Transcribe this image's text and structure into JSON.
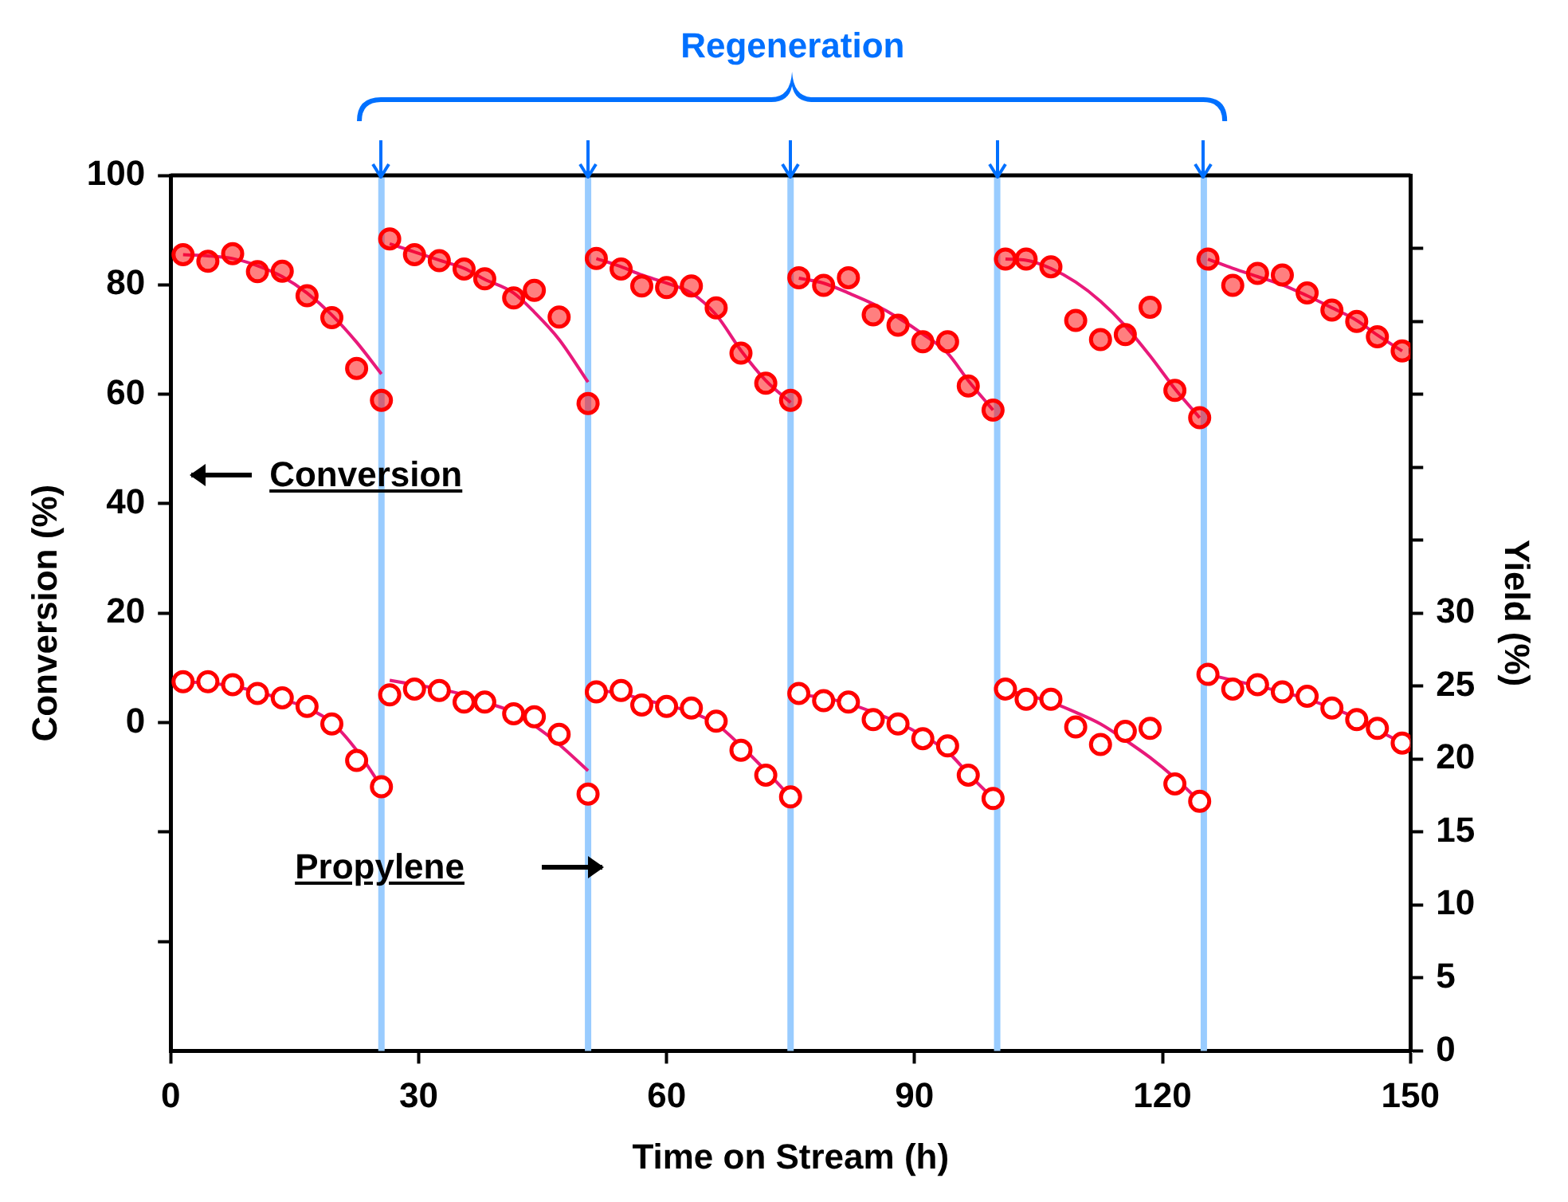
{
  "chart_data": {
    "type": "scatter",
    "xlabel": "Time on Stream (h)",
    "ylabel": "Conversion (%)",
    "y2label": "Yield (%)",
    "xlim": [
      0,
      150
    ],
    "xticks": [
      0,
      30,
      60,
      90,
      120,
      150
    ],
    "ylim": [
      -60,
      100
    ],
    "yticks": [
      {
        "value": -40,
        "label": null
      },
      {
        "value": -20,
        "label": null
      },
      0,
      20,
      40,
      60,
      80,
      100
    ],
    "y2lim": [
      0,
      60
    ],
    "y2ticks": [
      0,
      5,
      10,
      15,
      20,
      25,
      30,
      {
        "value": 35,
        "label": null
      },
      {
        "value": 40,
        "label": null
      },
      {
        "value": 45,
        "label": null
      },
      {
        "value": 50,
        "label": null
      },
      {
        "value": 55,
        "label": null
      }
    ],
    "grid": false,
    "legend": false,
    "ref_lines": [
      {
        "axis": "x",
        "value": 25.5,
        "color": "#99ccff"
      },
      {
        "axis": "x",
        "value": 50.5,
        "color": "#99ccff"
      },
      {
        "axis": "x",
        "value": 75,
        "color": "#99ccff"
      },
      {
        "axis": "x",
        "value": 100,
        "color": "#99ccff"
      },
      {
        "axis": "x",
        "value": 125,
        "color": "#99ccff"
      }
    ],
    "annotations": [
      "Regeneration",
      "Conversion",
      "Propylene"
    ],
    "series": [
      {
        "type": "scatter",
        "marker": "circle",
        "color": "#ff0000",
        "x": [
          1.5,
          4.5,
          7.5,
          10.5,
          13.5,
          16.5,
          19.5,
          22.5,
          25.5,
          26.5,
          29.5,
          32.5,
          35.5,
          38,
          41.5,
          44,
          47,
          50.5,
          51.5,
          54.5,
          57,
          60,
          63,
          66,
          69,
          72,
          75,
          76,
          79,
          82,
          85,
          88,
          91,
          94,
          96.5,
          99.5,
          101,
          103.5,
          106.5,
          109.5,
          112.5,
          115.5,
          118.5,
          121.5,
          124.5,
          125.5,
          128.5,
          131.5,
          134.5,
          137.5,
          140.5,
          143.5,
          146,
          149
        ],
        "values": [
          85.5,
          84.3,
          85.7,
          82.4,
          82.5,
          78.0,
          74.0,
          64.7,
          58.9,
          88.4,
          85.5,
          84.4,
          82.9,
          81.1,
          77.6,
          79.0,
          74.1,
          58.3,
          84.8,
          82.9,
          79.8,
          79.5,
          79.8,
          75.8,
          67.5,
          62.0,
          58.9,
          81.3,
          79.9,
          81.3,
          74.5,
          72.6,
          69.6,
          69.6,
          61.5,
          57.1,
          84.7,
          84.7,
          83.3,
          73.5,
          70.0,
          70.9,
          75.9,
          60.7,
          55.7,
          84.7,
          79.9,
          82.1,
          81.8,
          78.5,
          75.4,
          73.3,
          70.5,
          67.9
        ]
      },
      {
        "type": "line",
        "marker": "none",
        "color": "#e8197a",
        "x": [
          1.5,
          4.5,
          7.5,
          10.5,
          13.5,
          16.5,
          19.5,
          22.5,
          25.5,
          26,
          26.5,
          29.5,
          32.5,
          35.5,
          38,
          41.5,
          44,
          47,
          50.5,
          51,
          51.5,
          54.5,
          57,
          60,
          63,
          66,
          69,
          72,
          75,
          75.5,
          76,
          79,
          82,
          85,
          88,
          91,
          94,
          96.5,
          99.5,
          100.5,
          101,
          103.5,
          106.5,
          109.5,
          112.5,
          115.5,
          118.5,
          121.5,
          124.5,
          125,
          125.5,
          128.5,
          131.5,
          134.5,
          137.5,
          140.5,
          143.5,
          146,
          149
        ],
        "values": [
          85.5,
          85.3,
          84.8,
          83.5,
          81.5,
          78.5,
          74.5,
          69.5,
          63.7,
          null,
          87.5,
          86,
          84.5,
          83,
          81,
          78.5,
          75,
          70,
          62.2,
          null,
          84.8,
          83.3,
          81.8,
          80.3,
          78.5,
          74.5,
          68,
          62.5,
          58.5,
          null,
          81.2,
          80.3,
          78.5,
          76.5,
          74,
          71,
          67.5,
          62.5,
          57.1,
          null,
          84.7,
          84.5,
          83,
          80.5,
          77,
          72.5,
          67,
          61,
          55.7,
          null,
          84.7,
          83,
          81.5,
          80,
          78,
          75.8,
          73.5,
          70.8,
          67.9
        ]
      },
      {
        "type": "scatter",
        "marker": "circle",
        "axis": "y2",
        "color": "#ff0000",
        "x": [
          1.5,
          4.5,
          7.5,
          10.5,
          13.5,
          16.5,
          19.5,
          22.5,
          25.5,
          26.5,
          29.5,
          32.5,
          35.5,
          38,
          41.5,
          44,
          47,
          50.5,
          51.5,
          54.5,
          57,
          60,
          63,
          66,
          69,
          72,
          75,
          76,
          79,
          82,
          85,
          88,
          91,
          94,
          96.5,
          99.5,
          101,
          103.5,
          106.5,
          109.5,
          112.5,
          115.5,
          118.5,
          121.5,
          124.5,
          125.5,
          128.5,
          131.5,
          134.5,
          137.5,
          140.5,
          143.5,
          146,
          149
        ],
        "values": [
          25.3,
          25.3,
          25.1,
          24.5,
          24.2,
          23.6,
          22.4,
          19.9,
          18.1,
          24.4,
          24.8,
          24.7,
          23.9,
          23.9,
          23.1,
          22.9,
          21.7,
          17.6,
          24.6,
          24.7,
          23.7,
          23.6,
          23.5,
          22.6,
          20.6,
          18.9,
          17.4,
          24.5,
          24.0,
          23.9,
          22.7,
          22.4,
          21.4,
          20.9,
          18.9,
          17.3,
          24.8,
          24.1,
          24.1,
          22.2,
          21.0,
          21.9,
          22.1,
          18.3,
          17.1,
          25.8,
          24.8,
          25.1,
          24.6,
          24.3,
          23.5,
          22.7,
          22.1,
          21.1
        ]
      },
      {
        "type": "line",
        "marker": "none",
        "axis": "y2",
        "color": "#e8197a",
        "x": [
          1.5,
          4.5,
          7.5,
          10.5,
          13.5,
          16.5,
          19.5,
          22.5,
          25.5,
          26,
          26.5,
          29.5,
          32.5,
          35.5,
          38,
          41.5,
          44,
          47,
          50.5,
          51,
          51.5,
          54.5,
          57,
          60,
          63,
          66,
          69,
          72,
          75,
          75.5,
          76,
          79,
          82,
          85,
          88,
          91,
          94,
          96.5,
          99.5,
          100.5,
          101,
          103.5,
          106.5,
          109.5,
          112.5,
          115.5,
          118.5,
          121.5,
          124.5,
          125,
          125.5,
          128.5,
          131.5,
          134.5,
          137.5,
          140.5,
          143.5,
          146,
          149
        ],
        "values": [
          25.3,
          25.2,
          25,
          24.6,
          24.1,
          23.5,
          22.5,
          20.6,
          18.1,
          null,
          25.4,
          25.1,
          24.8,
          24.4,
          23.9,
          23.2,
          22.3,
          21,
          19.2,
          null,
          24.7,
          24.5,
          24.1,
          23.7,
          23.2,
          22.4,
          20.9,
          19.2,
          17.4,
          null,
          24.4,
          24.2,
          23.8,
          23.2,
          22.5,
          21.6,
          20.5,
          19,
          17.3,
          null,
          24.7,
          24.4,
          23.9,
          23.2,
          22.4,
          21.3,
          20.1,
          18.7,
          17.1,
          null,
          25.8,
          25.4,
          25,
          24.6,
          24.1,
          23.5,
          22.8,
          22,
          21.1
        ]
      }
    ]
  }
}
